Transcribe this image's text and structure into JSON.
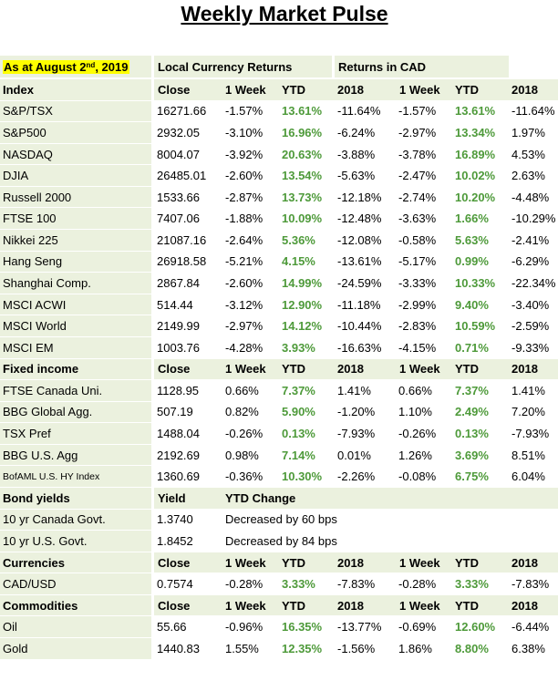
{
  "title": "Weekly Market Pulse",
  "header": {
    "as_at_prefix": "As at August 2",
    "as_at_sup": "nd",
    "as_at_suffix": ", 2019",
    "local_returns": "Local Currency Returns",
    "cad_returns": "Returns in CAD"
  },
  "col_headers": {
    "close": "Close",
    "week": "1 Week",
    "ytd": "YTD",
    "y2018": "2018",
    "yield": "Yield",
    "ytd_change": "YTD Change"
  },
  "sections": {
    "index": "Index",
    "fixed": "Fixed income",
    "bonds": "Bond yields",
    "currencies": "Currencies",
    "commodities": "Commodities"
  },
  "index_rows": [
    {
      "name": "S&P/TSX",
      "close": "16271.66",
      "week": "-1.57%",
      "ytd": "13.61%",
      "y2018": "-11.64%",
      "cad_week": "-1.57%",
      "cad_ytd": "13.61%",
      "cad_2018": "-11.64%"
    },
    {
      "name": "S&P500",
      "close": "2932.05",
      "week": "-3.10%",
      "ytd": "16.96%",
      "y2018": "-6.24%",
      "cad_week": "-2.97%",
      "cad_ytd": "13.34%",
      "cad_2018": "1.97%"
    },
    {
      "name": "NASDAQ",
      "close": "8004.07",
      "week": "-3.92%",
      "ytd": "20.63%",
      "y2018": "-3.88%",
      "cad_week": "-3.78%",
      "cad_ytd": "16.89%",
      "cad_2018": "4.53%"
    },
    {
      "name": "DJIA",
      "close": "26485.01",
      "week": "-2.60%",
      "ytd": "13.54%",
      "y2018": "-5.63%",
      "cad_week": "-2.47%",
      "cad_ytd": "10.02%",
      "cad_2018": "2.63%"
    },
    {
      "name": "Russell 2000",
      "close": "1533.66",
      "week": "-2.87%",
      "ytd": "13.73%",
      "y2018": "-12.18%",
      "cad_week": "-2.74%",
      "cad_ytd": "10.20%",
      "cad_2018": "-4.48%"
    },
    {
      "name": "FTSE 100",
      "close": "7407.06",
      "week": "-1.88%",
      "ytd": "10.09%",
      "y2018": "-12.48%",
      "cad_week": "-3.63%",
      "cad_ytd": "1.66%",
      "cad_2018": "-10.29%"
    },
    {
      "name": "Nikkei 225",
      "close": "21087.16",
      "week": "-2.64%",
      "ytd": "5.36%",
      "y2018": "-12.08%",
      "cad_week": "-0.58%",
      "cad_ytd": "5.63%",
      "cad_2018": "-2.41%"
    },
    {
      "name": "Hang Seng",
      "close": "26918.58",
      "week": "-5.21%",
      "ytd": "4.15%",
      "y2018": "-13.61%",
      "cad_week": "-5.17%",
      "cad_ytd": "0.99%",
      "cad_2018": "-6.29%"
    },
    {
      "name": "Shanghai Comp.",
      "close": "2867.84",
      "week": "-2.60%",
      "ytd": "14.99%",
      "y2018": "-24.59%",
      "cad_week": "-3.33%",
      "cad_ytd": "10.33%",
      "cad_2018": "-22.34%"
    },
    {
      "name": "MSCI ACWI",
      "close": "514.44",
      "week": "-3.12%",
      "ytd": "12.90%",
      "y2018": "-11.18%",
      "cad_week": "-2.99%",
      "cad_ytd": "9.40%",
      "cad_2018": "-3.40%"
    },
    {
      "name": "MSCI World",
      "close": "2149.99",
      "week": "-2.97%",
      "ytd": "14.12%",
      "y2018": "-10.44%",
      "cad_week": "-2.83%",
      "cad_ytd": "10.59%",
      "cad_2018": "-2.59%"
    },
    {
      "name": "MSCI EM",
      "close": "1003.76",
      "week": "-4.28%",
      "ytd": "3.93%",
      "y2018": "-16.63%",
      "cad_week": "-4.15%",
      "cad_ytd": "0.71%",
      "cad_2018": "-9.33%"
    }
  ],
  "fixed_rows": [
    {
      "name": "FTSE Canada Uni.",
      "close": "1128.95",
      "week": "0.66%",
      "ytd": "7.37%",
      "y2018": "1.41%",
      "cad_week": "0.66%",
      "cad_ytd": "7.37%",
      "cad_2018": "1.41%"
    },
    {
      "name": "BBG Global Agg.",
      "close": "507.19",
      "week": "0.82%",
      "ytd": "5.90%",
      "y2018": "-1.20%",
      "cad_week": "1.10%",
      "cad_ytd": "2.49%",
      "cad_2018": "7.20%"
    },
    {
      "name": "TSX Pref",
      "close": "1488.04",
      "week": "-0.26%",
      "ytd": "0.13%",
      "y2018": "-7.93%",
      "cad_week": "-0.26%",
      "cad_ytd": "0.13%",
      "cad_2018": "-7.93%"
    },
    {
      "name": "BBG U.S. Agg",
      "close": "2192.69",
      "week": "0.98%",
      "ytd": "7.14%",
      "y2018": "0.01%",
      "cad_week": "1.26%",
      "cad_ytd": "3.69%",
      "cad_2018": "8.51%"
    },
    {
      "name": "BofAML U.S. HY Index",
      "close": "1360.69",
      "week": "-0.36%",
      "ytd": "10.30%",
      "y2018": "-2.26%",
      "cad_week": "-0.08%",
      "cad_ytd": "6.75%",
      "cad_2018": "6.04%",
      "small": true
    }
  ],
  "bond_rows": [
    {
      "name": "10 yr Canada Govt.",
      "yield": "1.3740",
      "change": "Decreased by 60 bps"
    },
    {
      "name": "10 yr U.S. Govt.",
      "yield": "1.8452",
      "change": "Decreased by 84 bps"
    }
  ],
  "currency_rows": [
    {
      "name": "CAD/USD",
      "close": "0.7574",
      "week": "-0.28%",
      "ytd": "3.33%",
      "y2018": "-7.83%",
      "cad_week": "-0.28%",
      "cad_ytd": "3.33%",
      "cad_2018": "-7.83%"
    }
  ],
  "commodity_rows": [
    {
      "name": "Oil",
      "close": "55.66",
      "week": "-0.96%",
      "ytd": "16.35%",
      "y2018": "-13.77%",
      "cad_week": "-0.69%",
      "cad_ytd": "12.60%",
      "cad_2018": "-6.44%"
    },
    {
      "name": "Gold",
      "close": "1440.83",
      "week": "1.55%",
      "ytd": "12.35%",
      "y2018": "-1.56%",
      "cad_week": "1.86%",
      "cad_ytd": "8.80%",
      "cad_2018": "6.38%"
    }
  ]
}
